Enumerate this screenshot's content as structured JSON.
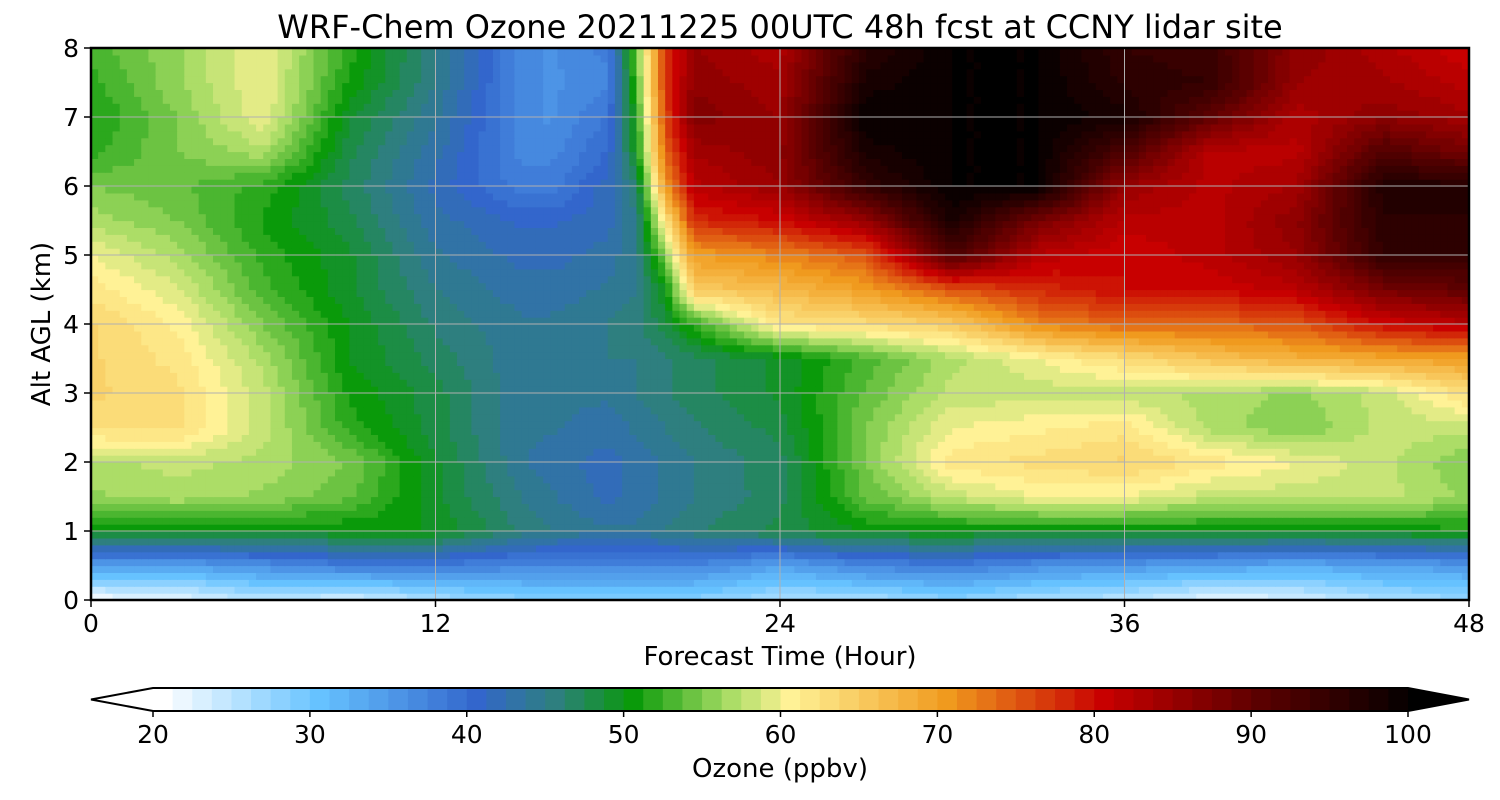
{
  "chart_data": {
    "type": "heatmap",
    "title": "WRF-Chem Ozone  20211225 00UTC 48h fcst at CCNY lidar site",
    "xlabel": "Forecast Time (Hour)",
    "ylabel": "Alt AGL (km)",
    "xlim": [
      0,
      48
    ],
    "ylim": [
      0,
      8
    ],
    "xticks": [
      "0",
      "12",
      "24",
      "36",
      "48"
    ],
    "yticks": [
      "0",
      "1",
      "2",
      "3",
      "4",
      "5",
      "6",
      "7",
      "8"
    ],
    "grid": true,
    "colorbar": {
      "label": "Ozone  (ppbv)",
      "min": 20,
      "max": 100,
      "ticks": [
        "20",
        "30",
        "40",
        "50",
        "60",
        "70",
        "80",
        "90",
        "100"
      ],
      "extend": "both",
      "colors": {
        "low": "#ffffff",
        "light_blue": "#66c2ff",
        "blue": "#3366cc",
        "teal": "#2e7f7f",
        "green": "#0a9a0a",
        "light_green": "#a6dc64",
        "yellow": "#fff296",
        "orange": "#f09a1e",
        "red": "#c80000",
        "dark_red": "#5a0000",
        "black": "#000000"
      }
    },
    "x": [
      0,
      3,
      6,
      9,
      12,
      15,
      16,
      18,
      19,
      20,
      21,
      24,
      27,
      30,
      33,
      36,
      39,
      42,
      45,
      48
    ],
    "y": [
      0,
      0.5,
      1,
      1.5,
      2,
      2.5,
      3,
      3.5,
      4,
      4.5,
      5,
      5.5,
      6,
      6.5,
      7,
      7.5,
      8
    ],
    "z": [
      [
        21,
        22,
        25,
        23,
        26,
        28,
        28,
        28,
        28,
        28,
        28,
        26,
        26,
        28,
        26,
        25,
        22,
        23,
        26,
        27
      ],
      [
        34,
        34,
        36,
        38,
        38,
        37,
        37,
        37,
        37,
        37,
        37,
        34,
        37,
        38,
        36,
        35,
        34,
        33,
        34,
        35
      ],
      [
        50,
        50,
        50,
        50,
        50,
        46,
        45,
        44,
        44,
        45,
        46,
        48,
        50,
        50,
        50,
        50,
        50,
        50,
        50,
        51
      ],
      [
        56,
        57,
        56,
        54,
        49,
        45,
        44,
        42,
        43,
        44,
        45,
        47,
        54,
        58,
        60,
        60,
        58,
        58,
        58,
        56
      ],
      [
        57,
        58,
        57,
        55,
        49,
        44,
        43,
        42,
        43,
        44,
        45,
        47,
        55,
        62,
        63,
        64,
        62,
        60,
        58,
        55
      ],
      [
        63,
        63,
        58,
        52,
        48,
        44,
        44,
        43,
        44,
        45,
        46,
        48,
        55,
        60,
        61,
        62,
        57,
        55,
        58,
        58
      ],
      [
        64,
        63,
        58,
        51,
        48,
        44,
        44,
        44,
        45,
        46,
        47,
        49,
        54,
        58,
        58,
        58,
        57,
        56,
        58,
        63
      ],
      [
        64,
        62,
        57,
        50,
        47,
        44,
        44,
        45,
        45,
        46,
        47,
        49,
        53,
        57,
        60,
        63,
        66,
        68,
        69,
        70
      ],
      [
        64,
        61,
        55,
        50,
        46,
        44,
        44,
        45,
        46,
        48,
        52,
        62,
        63,
        65,
        72,
        74,
        74,
        75,
        80,
        82
      ],
      [
        62,
        59,
        53,
        49,
        45,
        43,
        43,
        44,
        45,
        50,
        65,
        67,
        70,
        75,
        78,
        80,
        80,
        82,
        88,
        90
      ],
      [
        60,
        57,
        52,
        49,
        44,
        42,
        42,
        43,
        45,
        55,
        70,
        72,
        75,
        92,
        82,
        80,
        82,
        85,
        95,
        95
      ],
      [
        57,
        55,
        51,
        48,
        43,
        41,
        41,
        42,
        45,
        62,
        78,
        80,
        85,
        98,
        88,
        82,
        82,
        86,
        96,
        96
      ],
      [
        55,
        54,
        52,
        47,
        42,
        38,
        38,
        42,
        46,
        70,
        82,
        85,
        95,
        100,
        100,
        85,
        82,
        84,
        97,
        97
      ],
      [
        52,
        55,
        57,
        48,
        43,
        37,
        37,
        40,
        50,
        74,
        84,
        86,
        98,
        100,
        100,
        92,
        82,
        82,
        92,
        88
      ],
      [
        51,
        55,
        60,
        49,
        44,
        37,
        36,
        39,
        51,
        76,
        87,
        85,
        100,
        100,
        100,
        98,
        90,
        83,
        86,
        84
      ],
      [
        52,
        56,
        60,
        51,
        45,
        37,
        36,
        37,
        53,
        77,
        86,
        84,
        98,
        100,
        100,
        96,
        95,
        85,
        84,
        82
      ],
      [
        53,
        56,
        60,
        52,
        45,
        37,
        36,
        38,
        54,
        77,
        85,
        83,
        96,
        100,
        100,
        95,
        94,
        86,
        83,
        80
      ]
    ]
  }
}
